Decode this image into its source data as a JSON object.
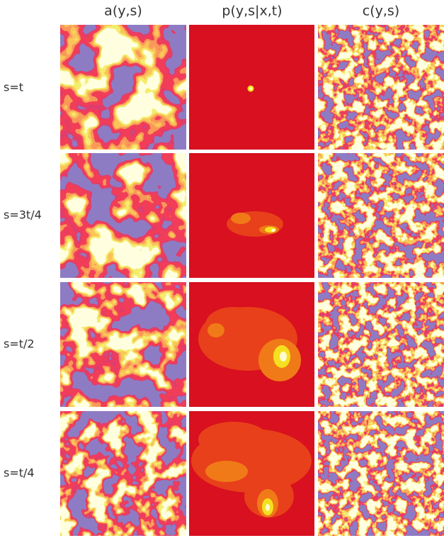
{
  "columns": [
    "a(y,s)",
    "p(y,s|x,t)",
    "c(y,s)"
  ],
  "rows": [
    "s=t",
    "s=3t/4",
    "s=t/2",
    "s=t/4"
  ]
}
